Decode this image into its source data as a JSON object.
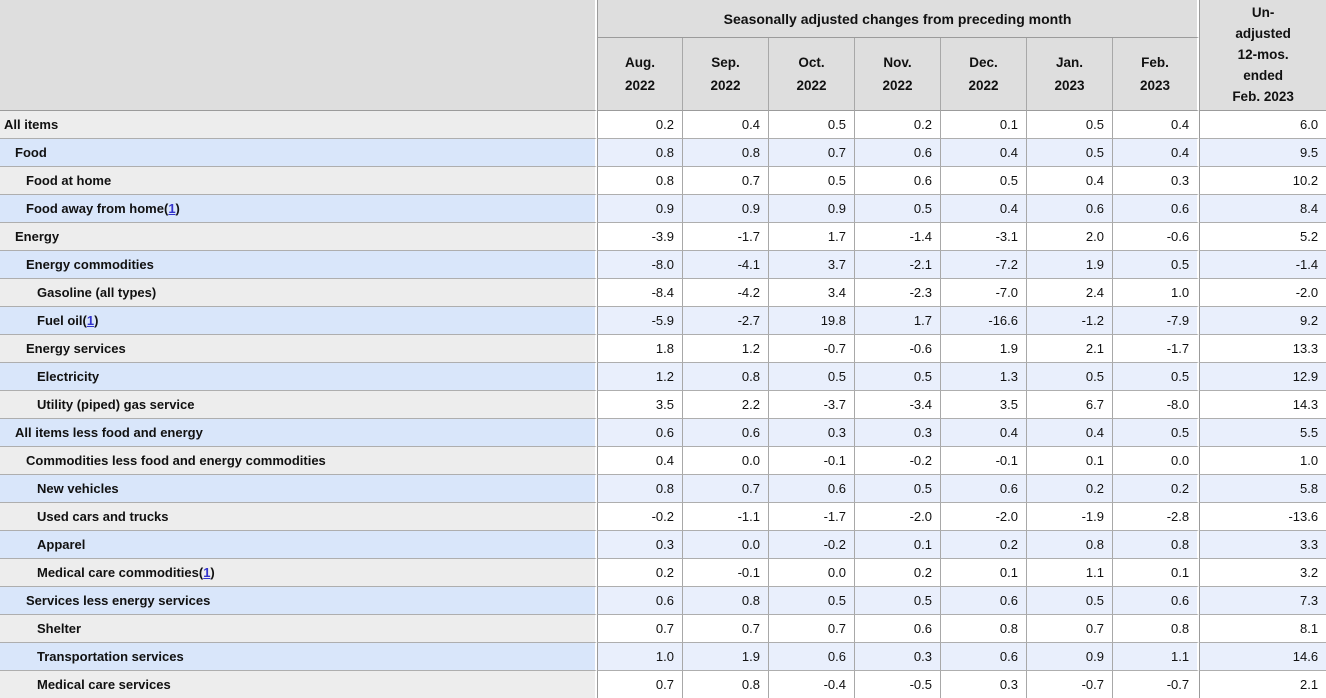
{
  "chart_data": {
    "type": "table",
    "title": "",
    "group_header": "Seasonally adjusted changes from preceding month",
    "columns": [
      "Aug. 2022",
      "Sep. 2022",
      "Oct. 2022",
      "Nov. 2022",
      "Dec. 2022",
      "Jan. 2023",
      "Feb. 2023",
      "Un-adjusted 12-mos. ended Feb. 2023"
    ],
    "rows": [
      {
        "label": "All items",
        "indent": 0,
        "footnote": null,
        "values": [
          "0.2",
          "0.4",
          "0.5",
          "0.2",
          "0.1",
          "0.5",
          "0.4"
        ],
        "unadjusted": "6.0"
      },
      {
        "label": "Food",
        "indent": 1,
        "footnote": null,
        "values": [
          "0.8",
          "0.8",
          "0.7",
          "0.6",
          "0.4",
          "0.5",
          "0.4"
        ],
        "unadjusted": "9.5"
      },
      {
        "label": "Food at home",
        "indent": 2,
        "footnote": null,
        "values": [
          "0.8",
          "0.7",
          "0.5",
          "0.6",
          "0.5",
          "0.4",
          "0.3"
        ],
        "unadjusted": "10.2"
      },
      {
        "label": "Food away from home",
        "indent": 2,
        "footnote": "1",
        "values": [
          "0.9",
          "0.9",
          "0.9",
          "0.5",
          "0.4",
          "0.6",
          "0.6"
        ],
        "unadjusted": "8.4"
      },
      {
        "label": "Energy",
        "indent": 1,
        "footnote": null,
        "values": [
          "-3.9",
          "-1.7",
          "1.7",
          "-1.4",
          "-3.1",
          "2.0",
          "-0.6"
        ],
        "unadjusted": "5.2"
      },
      {
        "label": "Energy commodities",
        "indent": 2,
        "footnote": null,
        "values": [
          "-8.0",
          "-4.1",
          "3.7",
          "-2.1",
          "-7.2",
          "1.9",
          "0.5"
        ],
        "unadjusted": "-1.4"
      },
      {
        "label": "Gasoline (all types)",
        "indent": 3,
        "footnote": null,
        "values": [
          "-8.4",
          "-4.2",
          "3.4",
          "-2.3",
          "-7.0",
          "2.4",
          "1.0"
        ],
        "unadjusted": "-2.0"
      },
      {
        "label": "Fuel oil",
        "indent": 3,
        "footnote": "1",
        "values": [
          "-5.9",
          "-2.7",
          "19.8",
          "1.7",
          "-16.6",
          "-1.2",
          "-7.9"
        ],
        "unadjusted": "9.2"
      },
      {
        "label": "Energy services",
        "indent": 2,
        "footnote": null,
        "values": [
          "1.8",
          "1.2",
          "-0.7",
          "-0.6",
          "1.9",
          "2.1",
          "-1.7"
        ],
        "unadjusted": "13.3"
      },
      {
        "label": "Electricity",
        "indent": 3,
        "footnote": null,
        "values": [
          "1.2",
          "0.8",
          "0.5",
          "0.5",
          "1.3",
          "0.5",
          "0.5"
        ],
        "unadjusted": "12.9"
      },
      {
        "label": "Utility (piped) gas service",
        "indent": 3,
        "footnote": null,
        "values": [
          "3.5",
          "2.2",
          "-3.7",
          "-3.4",
          "3.5",
          "6.7",
          "-8.0"
        ],
        "unadjusted": "14.3"
      },
      {
        "label": "All items less food and energy",
        "indent": 1,
        "footnote": null,
        "values": [
          "0.6",
          "0.6",
          "0.3",
          "0.3",
          "0.4",
          "0.4",
          "0.5"
        ],
        "unadjusted": "5.5"
      },
      {
        "label": "Commodities less food and energy commodities",
        "indent": 2,
        "footnote": null,
        "values": [
          "0.4",
          "0.0",
          "-0.1",
          "-0.2",
          "-0.1",
          "0.1",
          "0.0"
        ],
        "unadjusted": "1.0"
      },
      {
        "label": "New vehicles",
        "indent": 3,
        "footnote": null,
        "values": [
          "0.8",
          "0.7",
          "0.6",
          "0.5",
          "0.6",
          "0.2",
          "0.2"
        ],
        "unadjusted": "5.8"
      },
      {
        "label": "Used cars and trucks",
        "indent": 3,
        "footnote": null,
        "values": [
          "-0.2",
          "-1.1",
          "-1.7",
          "-2.0",
          "-2.0",
          "-1.9",
          "-2.8"
        ],
        "unadjusted": "-13.6"
      },
      {
        "label": "Apparel",
        "indent": 3,
        "footnote": null,
        "values": [
          "0.3",
          "0.0",
          "-0.2",
          "0.1",
          "0.2",
          "0.8",
          "0.8"
        ],
        "unadjusted": "3.3"
      },
      {
        "label": "Medical care commodities",
        "indent": 3,
        "footnote": "1",
        "values": [
          "0.2",
          "-0.1",
          "0.0",
          "0.2",
          "0.1",
          "1.1",
          "0.1"
        ],
        "unadjusted": "3.2"
      },
      {
        "label": "Services less energy services",
        "indent": 2,
        "footnote": null,
        "values": [
          "0.6",
          "0.8",
          "0.5",
          "0.5",
          "0.6",
          "0.5",
          "0.6"
        ],
        "unadjusted": "7.3"
      },
      {
        "label": "Shelter",
        "indent": 3,
        "footnote": null,
        "values": [
          "0.7",
          "0.7",
          "0.7",
          "0.6",
          "0.8",
          "0.7",
          "0.8"
        ],
        "unadjusted": "8.1"
      },
      {
        "label": "Transportation services",
        "indent": 3,
        "footnote": null,
        "values": [
          "1.0",
          "1.9",
          "0.6",
          "0.3",
          "0.6",
          "0.9",
          "1.1"
        ],
        "unadjusted": "14.6"
      },
      {
        "label": "Medical care services",
        "indent": 3,
        "footnote": null,
        "values": [
          "0.7",
          "0.8",
          "-0.4",
          "-0.5",
          "0.3",
          "-0.7",
          "-0.7"
        ],
        "unadjusted": "2.1"
      }
    ]
  },
  "header": {
    "group_label": "Seasonally adjusted changes from preceding month",
    "unadjusted_lines": [
      "Un-",
      "adjusted",
      "12-mos.",
      "ended",
      "Feb. 2023"
    ]
  },
  "colors": {
    "header_grey": "#dedede",
    "label_grey": "#ededed",
    "label_blue": "#d9e6fa",
    "data_blue": "#e9effc",
    "border_grey": "#a8a8a8",
    "border_dark": "#9b9b9b",
    "link_blue": "#3333cc",
    "text": "#111111"
  }
}
